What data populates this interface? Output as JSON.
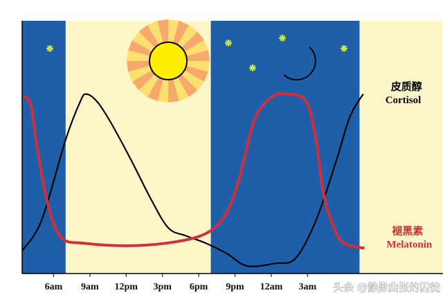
{
  "chart_data": {
    "type": "line",
    "xlim": [
      3.4,
      38.2
    ],
    "ylim": [
      0,
      100
    ],
    "xticks": [
      {
        "value": 6,
        "label": "6am"
      },
      {
        "value": 9,
        "label": "9am"
      },
      {
        "value": 12,
        "label": "12pm"
      },
      {
        "value": 15,
        "label": "3pm"
      },
      {
        "value": 18,
        "label": "6pm"
      },
      {
        "value": 21,
        "label": "9pm"
      },
      {
        "value": 24,
        "label": "12am"
      },
      {
        "value": 27,
        "label": "3am"
      }
    ],
    "bands": [
      {
        "from": 3.4,
        "to": 7,
        "color": "#1f5ea8"
      },
      {
        "from": 7,
        "to": 19,
        "color": "#fcf6c9"
      },
      {
        "from": 19,
        "to": 31.3,
        "color": "#1f5ea8"
      },
      {
        "from": 31.3,
        "to": 38.2,
        "color": "#fcf6c9"
      }
    ],
    "series": [
      {
        "name": "Cortisol",
        "name_zh": "皮质醇",
        "color": "#000000",
        "x": [
          3.4,
          5,
          7,
          8.2,
          8.7,
          9.6,
          10.7,
          12.4,
          14.1,
          15.5,
          16.9,
          18.6,
          20.3,
          22,
          24.3,
          26,
          27.7,
          29.4,
          30.5,
          31.6
        ],
        "values": [
          9,
          21,
          53,
          68,
          71,
          68,
          60,
          45,
          29,
          18,
          15,
          12,
          8,
          3,
          4,
          6,
          21,
          45,
          62,
          71
        ]
      },
      {
        "name": "Melatonin",
        "name_zh": "褪黑素",
        "color": "#d0303a",
        "x": [
          3.4,
          4.1,
          4.7,
          5.6,
          6.7,
          8.5,
          11.9,
          15.3,
          18.2,
          19.9,
          21,
          21.9,
          22.7,
          24.1,
          25.5,
          26.9,
          27.7,
          28.3,
          29.2,
          30,
          31.7
        ],
        "values": [
          70,
          67,
          48,
          26,
          14,
          12,
          11,
          12,
          15,
          21,
          32,
          48,
          62,
          70,
          71,
          68,
          53,
          32,
          18,
          12,
          10
        ]
      }
    ],
    "watermark": "头条 @静脉曲张的囚徒"
  }
}
